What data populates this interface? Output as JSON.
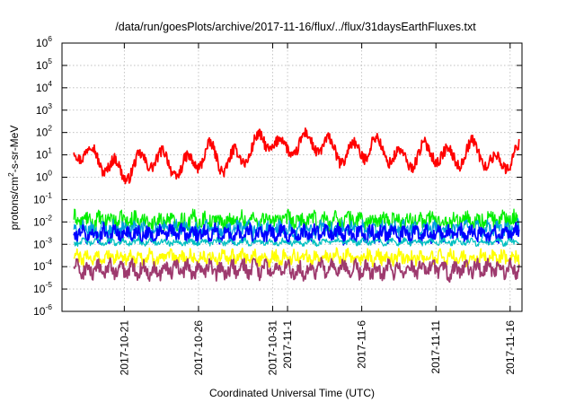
{
  "chart_data": {
    "type": "line",
    "title": "/data/run/goesPlots/archive/2017-11-16/flux/../flux/31daysEarthFluxes.txt",
    "xlabel": "Coordinated Universal Time (UTC)",
    "ylabel_parts": [
      "protons/cm",
      "2",
      "-s-sr-MeV"
    ],
    "y_scale": "log",
    "ylim_exponents": [
      -6,
      6
    ],
    "y_tick_base": "10",
    "y_tick_exponents": [
      "-6",
      "-5",
      "-4",
      "-3",
      "-2",
      "-1",
      "0",
      "1",
      "2",
      "3",
      "4",
      "5",
      "6"
    ],
    "xlim_days": [
      0,
      31
    ],
    "x_ticks": [
      {
        "label": "2017-10-21",
        "day": 4.2
      },
      {
        "label": "2017-10-26",
        "day": 9.2
      },
      {
        "label": "2017-10-31",
        "day": 14.2
      },
      {
        "label": "2017-11-1",
        "day": 15.2
      },
      {
        "label": "2017-11-6",
        "day": 20.2
      },
      {
        "label": "2017-11-11",
        "day": 25.2
      },
      {
        "label": "2017-11-16",
        "day": 30.2
      }
    ],
    "grid": true,
    "series": [
      {
        "color": "#ff0000",
        "width": 1.8,
        "base": 1.0,
        "osc": 0.45,
        "noise": 0.25,
        "period": 1.6,
        "log_values": [
          0.9,
          1.3,
          1.0,
          0.6,
          0.2,
          0.5,
          0.9,
          0.7,
          0.3,
          0.8,
          1.1,
          0.6,
          0.9,
          1.4,
          1.7,
          1.2,
          1.5,
          1.6,
          1.3,
          1.0,
          1.2,
          1.4,
          1.1,
          0.7,
          1.0,
          1.2,
          0.8,
          1.0,
          1.3,
          0.5,
          0.8
        ]
      },
      {
        "color": "#00ee00",
        "width": 1.3,
        "base": -1.95,
        "osc": 0.15,
        "noise": 0.35,
        "period": 0.8,
        "log_values": [
          -1.9,
          -1.9,
          -2.0,
          -1.9,
          -1.95,
          -1.9,
          -2.0,
          -1.9,
          -1.95,
          -1.9,
          -1.9,
          -2.0,
          -1.9,
          -1.95,
          -1.9,
          -1.9,
          -2.0,
          -1.9,
          -1.95,
          -1.9,
          -1.9,
          -2.0,
          -1.9,
          -1.95,
          -1.9,
          -1.9,
          -2.0,
          -1.9,
          -1.95,
          -1.9,
          -1.9
        ]
      },
      {
        "color": "#009fdf",
        "width": 1.2,
        "base": -2.3,
        "osc": 0.15,
        "noise": 0.3,
        "period": 0.7,
        "log_values": [
          -2.3,
          -2.3,
          -2.4,
          -2.3,
          -2.35,
          -2.3,
          -2.4,
          -2.3,
          -2.3,
          -2.35,
          -2.3,
          -2.4,
          -2.3,
          -2.3,
          -2.35,
          -2.3,
          -2.4,
          -2.3,
          -2.3,
          -2.35,
          -2.3,
          -2.4,
          -2.3,
          -2.3,
          -2.35,
          -2.3,
          -2.4,
          -2.3,
          -2.3,
          -2.35,
          -2.3
        ]
      },
      {
        "color": "#0000ff",
        "width": 1.8,
        "base": -2.55,
        "osc": 0.2,
        "noise": 0.3,
        "period": 0.75,
        "log_values": [
          -2.5,
          -2.5,
          -2.6,
          -2.5,
          -2.55,
          -2.5,
          -2.6,
          -2.5,
          -2.5,
          -2.55,
          -2.5,
          -2.6,
          -2.5,
          -2.5,
          -2.55,
          -2.5,
          -2.6,
          -2.5,
          -2.5,
          -2.55,
          -2.5,
          -2.6,
          -2.5,
          -2.5,
          -2.55,
          -2.5,
          -2.6,
          -2.5,
          -2.5,
          -2.55,
          -2.5
        ]
      },
      {
        "color": "#00c0c0",
        "width": 1.2,
        "base": -2.9,
        "osc": 0.08,
        "noise": 0.12,
        "period": 0.9,
        "log_values": [
          -2.9,
          -2.9,
          -2.9,
          -2.9,
          -2.9,
          -2.9,
          -2.9,
          -2.9,
          -2.9,
          -2.9,
          -2.9,
          -2.9,
          -2.9,
          -2.9,
          -2.9,
          -2.9,
          -2.9,
          -2.9,
          -2.9,
          -2.9,
          -2.9,
          -2.9,
          -2.9,
          -2.9,
          -2.9,
          -2.9,
          -2.9,
          -2.9,
          -2.9,
          -2.9,
          -2.9
        ]
      },
      {
        "color": "#ffff00",
        "width": 1.5,
        "base": -3.6,
        "osc": 0.15,
        "noise": 0.3,
        "period": 0.7,
        "log_values": [
          -3.6,
          -3.6,
          -3.6,
          -3.6,
          -3.6,
          -3.6,
          -3.6,
          -3.6,
          -3.6,
          -3.6,
          -3.6,
          -3.6,
          -3.6,
          -3.6,
          -3.6,
          -3.6,
          -3.6,
          -3.6,
          -3.6,
          -3.6,
          -3.6,
          -3.6,
          -3.6,
          -3.6,
          -3.6,
          -3.6,
          -3.6,
          -3.6,
          -3.6,
          -3.6,
          -3.6
        ]
      },
      {
        "color": "#9e3a6e",
        "width": 1.8,
        "base": -4.15,
        "osc": 0.22,
        "noise": 0.3,
        "period": 0.75,
        "log_values": [
          -4.1,
          -4.1,
          -4.2,
          -4.1,
          -4.15,
          -4.1,
          -4.2,
          -4.1,
          -4.1,
          -4.15,
          -4.1,
          -4.2,
          -4.1,
          -4.1,
          -4.15,
          -4.1,
          -4.2,
          -4.1,
          -4.1,
          -4.15,
          -4.1,
          -4.2,
          -4.1,
          -4.1,
          -4.15,
          -4.1,
          -4.2,
          -4.1,
          -4.1,
          -4.15,
          -4.1
        ]
      }
    ]
  }
}
